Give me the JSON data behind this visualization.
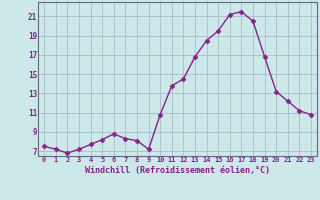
{
  "x": [
    0,
    1,
    2,
    3,
    4,
    5,
    6,
    7,
    8,
    9,
    10,
    11,
    12,
    13,
    14,
    15,
    16,
    17,
    18,
    19,
    20,
    21,
    22,
    23
  ],
  "y": [
    7.5,
    7.2,
    6.8,
    7.2,
    7.7,
    8.2,
    8.8,
    8.3,
    8.1,
    7.2,
    10.8,
    13.8,
    14.5,
    16.8,
    18.5,
    19.5,
    21.2,
    21.5,
    20.5,
    16.8,
    13.2,
    12.2,
    11.2,
    10.8
  ],
  "line_color": "#882288",
  "marker": "D",
  "markersize": 2.5,
  "linewidth": 1.0,
  "bg_color": "#cce8e8",
  "grid_color": "#aabbcc",
  "xlabel": "Windchill (Refroidissement éolien,°C)",
  "xlabel_color": "#882288",
  "tick_color": "#882288",
  "ylim": [
    6.5,
    22.5
  ],
  "yticks": [
    7,
    9,
    11,
    13,
    15,
    17,
    19,
    21
  ],
  "xlim": [
    -0.5,
    23.5
  ],
  "xticks": [
    0,
    1,
    2,
    3,
    4,
    5,
    6,
    7,
    8,
    9,
    10,
    11,
    12,
    13,
    14,
    15,
    16,
    17,
    18,
    19,
    20,
    21,
    22,
    23
  ],
  "spine_color": "#666688"
}
